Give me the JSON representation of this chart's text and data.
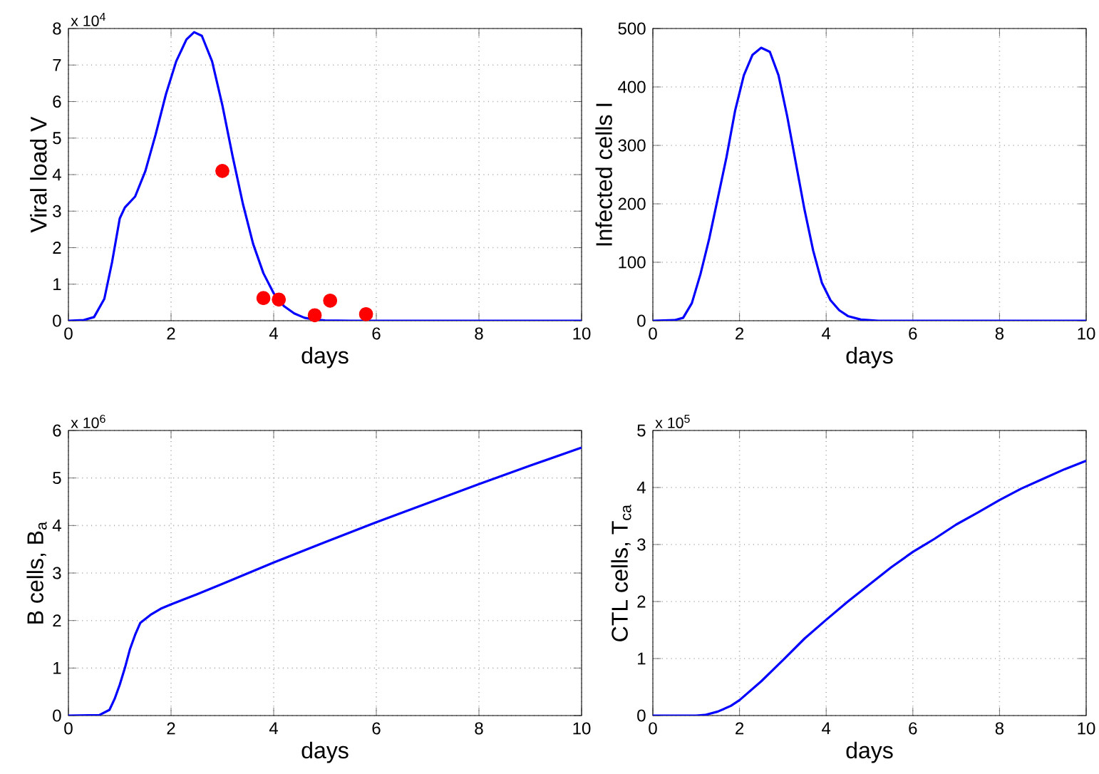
{
  "chart_data": [
    {
      "type": "line",
      "xlabel": "days",
      "ylabel": "Viral load V",
      "annotations": [
        "x 10$^{4}$"
      ],
      "grid": true,
      "xlim": [
        0,
        10
      ],
      "xticks": [
        0,
        2,
        4,
        6,
        8,
        10
      ],
      "ylim": [
        0,
        8
      ],
      "yticks": [
        0,
        1,
        2,
        3,
        4,
        5,
        6,
        7,
        8
      ],
      "series": [
        {
          "color": "#0000ff",
          "x": [
            0,
            0.3,
            0.5,
            0.7,
            0.85,
            1.0,
            1.1,
            1.3,
            1.5,
            1.7,
            1.9,
            2.1,
            2.3,
            2.45,
            2.6,
            2.8,
            3.0,
            3.2,
            3.4,
            3.6,
            3.8,
            4.0,
            4.2,
            4.4,
            4.6,
            4.8,
            5.0,
            5.5,
            10
          ],
          "values": [
            0,
            0.02,
            0.1,
            0.6,
            1.6,
            2.8,
            3.1,
            3.4,
            4.1,
            5.1,
            6.2,
            7.1,
            7.7,
            7.9,
            7.8,
            7.1,
            5.9,
            4.5,
            3.2,
            2.1,
            1.3,
            0.75,
            0.4,
            0.2,
            0.08,
            0.03,
            0.01,
            0,
            0
          ]
        },
        {
          "type": "scatter",
          "marker": "circle",
          "color": "#ff0000",
          "x": [
            3.0,
            3.8,
            4.1,
            4.8,
            5.1,
            5.8
          ],
          "values": [
            4.1,
            0.62,
            0.58,
            0.15,
            0.55,
            0.18
          ]
        }
      ]
    },
    {
      "type": "line",
      "xlabel": "days",
      "ylabel": "Infected cells I",
      "grid": true,
      "xlim": [
        0,
        10
      ],
      "xticks": [
        0,
        2,
        4,
        6,
        8,
        10
      ],
      "ylim": [
        0,
        500
      ],
      "yticks": [
        0,
        100,
        200,
        300,
        400,
        500
      ],
      "series": [
        {
          "color": "#0000ff",
          "x": [
            0,
            0.5,
            0.7,
            0.9,
            1.1,
            1.3,
            1.5,
            1.7,
            1.9,
            2.1,
            2.3,
            2.5,
            2.7,
            2.9,
            3.1,
            3.3,
            3.5,
            3.7,
            3.9,
            4.1,
            4.3,
            4.5,
            4.8,
            5.2,
            10
          ],
          "values": [
            0,
            1,
            5,
            30,
            80,
            140,
            210,
            280,
            360,
            420,
            455,
            467,
            460,
            420,
            350,
            270,
            190,
            120,
            65,
            35,
            18,
            8,
            2,
            0,
            0
          ]
        }
      ]
    },
    {
      "type": "line",
      "xlabel": "days",
      "ylabel": "B cells, B$_{a}$",
      "annotations": [
        "x 10$^{6}$"
      ],
      "grid": true,
      "xlim": [
        0,
        10
      ],
      "xticks": [
        0,
        2,
        4,
        6,
        8,
        10
      ],
      "ylim": [
        0,
        6
      ],
      "yticks": [
        0,
        1,
        2,
        3,
        4,
        5,
        6
      ],
      "series": [
        {
          "color": "#0000ff",
          "x": [
            0,
            0.6,
            0.8,
            0.9,
            1.0,
            1.1,
            1.2,
            1.3,
            1.4,
            1.6,
            1.8,
            2.0,
            2.5,
            3,
            4,
            5,
            6,
            7,
            8,
            9,
            10
          ],
          "values": [
            0,
            0.01,
            0.12,
            0.35,
            0.65,
            1.0,
            1.4,
            1.7,
            1.95,
            2.12,
            2.25,
            2.34,
            2.55,
            2.77,
            3.22,
            3.65,
            4.07,
            4.47,
            4.87,
            5.26,
            5.64
          ]
        }
      ]
    },
    {
      "type": "line",
      "xlabel": "days",
      "ylabel": "CTL cells, T$_{ca}$",
      "annotations": [
        "x 10$^{5}$"
      ],
      "grid": true,
      "xlim": [
        0,
        10
      ],
      "xticks": [
        0,
        2,
        4,
        6,
        8,
        10
      ],
      "ylim": [
        0,
        5
      ],
      "yticks": [
        0,
        1,
        2,
        3,
        4,
        5
      ],
      "series": [
        {
          "color": "#0000ff",
          "x": [
            0,
            1.0,
            1.2,
            1.5,
            1.8,
            2.0,
            2.5,
            3.0,
            3.5,
            4.0,
            4.5,
            5.0,
            5.5,
            6.0,
            6.5,
            7.0,
            7.5,
            8.0,
            8.5,
            9.0,
            9.5,
            10
          ],
          "values": [
            0,
            0,
            0.01,
            0.07,
            0.17,
            0.27,
            0.6,
            0.97,
            1.35,
            1.68,
            2.0,
            2.3,
            2.6,
            2.87,
            3.1,
            3.35,
            3.56,
            3.78,
            3.98,
            4.15,
            4.32,
            4.47
          ]
        }
      ]
    }
  ]
}
